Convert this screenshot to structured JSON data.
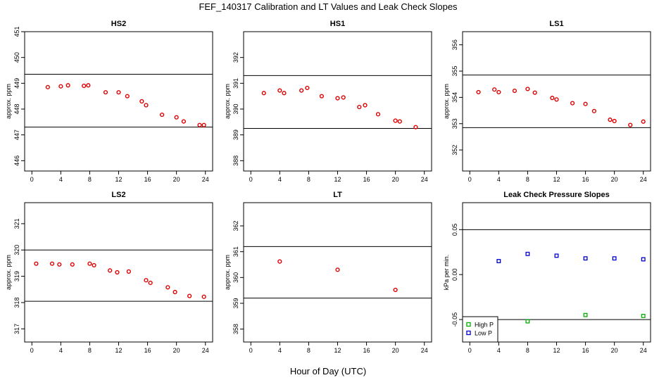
{
  "figure": {
    "title": "FEF_140317  Calibration and LT Values and Leak Check Slopes",
    "xlabel": "Hour of Day (UTC)"
  },
  "colors": {
    "points_red": "#e00000",
    "high_p": "#00b000",
    "low_p": "#0000d0",
    "lines": "#000000"
  },
  "chart_data": [
    {
      "type": "scatter",
      "title": "HS2",
      "ylabel": "approx. ppm",
      "xlim": [
        -1,
        25
      ],
      "ylim": [
        445.6,
        451
      ],
      "xticks": [
        0,
        4,
        8,
        12,
        16,
        20,
        24
      ],
      "yticks": [
        446,
        447,
        448,
        449,
        450,
        451
      ],
      "hlines": [
        449.35,
        447.3
      ],
      "series": [
        {
          "marker": "circle",
          "color": "#e00000",
          "x": [
            2.2,
            4.0,
            5.0,
            7.2,
            7.8,
            10.2,
            12.0,
            13.2,
            15.2,
            15.8,
            18.0,
            20.0,
            21.0,
            23.2,
            23.8
          ],
          "y": [
            448.85,
            448.88,
            448.92,
            448.9,
            448.92,
            448.65,
            448.65,
            448.5,
            448.3,
            448.15,
            447.78,
            447.68,
            447.52,
            447.38,
            447.38
          ]
        }
      ]
    },
    {
      "type": "scatter",
      "title": "HS1",
      "ylabel": "approx. ppm",
      "xlim": [
        -1,
        25
      ],
      "ylim": [
        387.6,
        393
      ],
      "xticks": [
        0,
        4,
        8,
        12,
        16,
        20,
        24
      ],
      "yticks": [
        388,
        389,
        390,
        391,
        392
      ],
      "hlines": [
        391.3,
        389.25
      ],
      "series": [
        {
          "marker": "circle",
          "color": "#e00000",
          "x": [
            1.8,
            4.0,
            4.6,
            7.0,
            7.8,
            9.8,
            12.0,
            12.8,
            15.0,
            15.8,
            17.6,
            20.0,
            20.6,
            22.8
          ],
          "y": [
            390.62,
            390.72,
            390.62,
            390.72,
            390.82,
            390.5,
            390.42,
            390.45,
            390.08,
            390.15,
            389.8,
            389.55,
            389.52,
            389.3
          ]
        }
      ]
    },
    {
      "type": "scatter",
      "title": "LS1",
      "ylabel": "approx. ppm",
      "xlim": [
        -1,
        25
      ],
      "ylim": [
        351.2,
        356.5
      ],
      "xticks": [
        0,
        4,
        8,
        12,
        16,
        20,
        24
      ],
      "yticks": [
        352,
        353,
        354,
        355,
        356
      ],
      "hlines": [
        354.85,
        352.85
      ],
      "series": [
        {
          "marker": "circle",
          "color": "#e00000",
          "x": [
            1.2,
            3.4,
            4.0,
            6.2,
            8.0,
            9.0,
            11.4,
            12.0,
            14.2,
            16.0,
            17.2,
            19.4,
            20.0,
            22.2,
            24.0
          ],
          "y": [
            354.2,
            354.3,
            354.2,
            354.25,
            354.32,
            354.18,
            353.98,
            353.92,
            353.78,
            353.75,
            353.48,
            353.15,
            353.1,
            352.95,
            353.08
          ]
        }
      ]
    },
    {
      "type": "scatter",
      "title": "LS2",
      "ylabel": "approx. ppm",
      "xlim": [
        -1,
        25
      ],
      "ylim": [
        316.5,
        321.8
      ],
      "xticks": [
        0,
        4,
        8,
        12,
        16,
        20,
        24
      ],
      "yticks": [
        317,
        318,
        319,
        320,
        321
      ],
      "hlines": [
        320.0,
        318.05
      ],
      "series": [
        {
          "marker": "circle",
          "color": "#e00000",
          "x": [
            0.6,
            2.8,
            3.8,
            5.6,
            8.0,
            8.6,
            10.8,
            11.8,
            13.4,
            15.8,
            16.4,
            18.8,
            19.8,
            21.8,
            23.8
          ],
          "y": [
            319.48,
            319.48,
            319.45,
            319.45,
            319.48,
            319.42,
            319.22,
            319.15,
            319.18,
            318.85,
            318.75,
            318.58,
            318.4,
            318.25,
            318.22
          ]
        }
      ]
    },
    {
      "type": "scatter",
      "title": "LT",
      "ylabel": "approx. ppm",
      "xlim": [
        -1,
        25
      ],
      "ylim": [
        357.5,
        362.9
      ],
      "xticks": [
        0,
        4,
        8,
        12,
        16,
        20,
        24
      ],
      "yticks": [
        358,
        359,
        360,
        361,
        362
      ],
      "hlines": [
        361.2,
        359.2
      ],
      "series": [
        {
          "marker": "circle",
          "color": "#e00000",
          "x": [
            4.0,
            12.0,
            20.0
          ],
          "y": [
            360.62,
            360.3,
            359.52
          ]
        }
      ]
    },
    {
      "type": "scatter",
      "title": "Leak Check Pressure Slopes",
      "ylabel": "kPa per min.",
      "xlim": [
        -1,
        25
      ],
      "ylim": [
        -0.075,
        0.08
      ],
      "xticks": [
        0,
        4,
        8,
        12,
        16,
        20,
        24
      ],
      "yticks": [
        -0.05,
        0.0,
        0.05
      ],
      "ytick_labels": [
        "-0.05",
        "0.00",
        "0.05"
      ],
      "hlines": [
        0.05,
        -0.05
      ],
      "legend": {
        "position": "bottom-left",
        "entries": [
          {
            "label": "High P",
            "color": "#00b000"
          },
          {
            "label": "Low P",
            "color": "#0000d0"
          }
        ]
      },
      "series": [
        {
          "name": "High P",
          "marker": "square",
          "color": "#00b000",
          "x": [
            8.0,
            16.0,
            24.0
          ],
          "y": [
            -0.052,
            -0.045,
            -0.046
          ]
        },
        {
          "name": "Low P",
          "marker": "square",
          "color": "#0000d0",
          "x": [
            4.0,
            8.0,
            12.0,
            16.0,
            20.0,
            24.0
          ],
          "y": [
            0.015,
            0.023,
            0.021,
            0.018,
            0.018,
            0.017
          ]
        }
      ]
    }
  ]
}
